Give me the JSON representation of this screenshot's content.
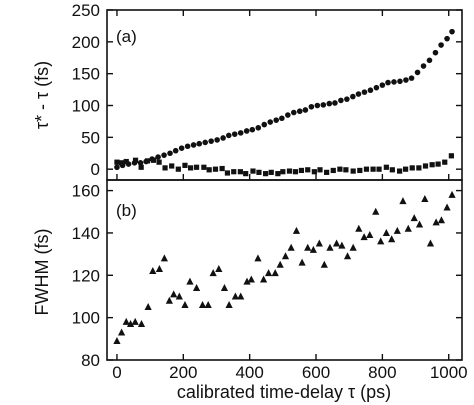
{
  "chart_data": [
    {
      "panel": "(a)",
      "type": "scatter",
      "ylabel": "τ* - τ (fs)",
      "yticks": [
        0,
        50,
        100,
        150,
        200,
        250
      ],
      "ylim": [
        -17,
        250
      ],
      "xlim": [
        -30,
        1040
      ],
      "grid": false,
      "series": [
        {
          "marker": "circle",
          "color": "#111111",
          "x": [
            0,
            17,
            35,
            53,
            71,
            88,
            106,
            124,
            142,
            160,
            177,
            195,
            213,
            231,
            248,
            266,
            284,
            302,
            320,
            337,
            355,
            373,
            391,
            408,
            426,
            444,
            462,
            480,
            497,
            515,
            533,
            551,
            568,
            586,
            604,
            622,
            640,
            657,
            675,
            693,
            711,
            728,
            746,
            764,
            782,
            800,
            817,
            835,
            853,
            871,
            888,
            906,
            924,
            942,
            960,
            977,
            995,
            1010
          ],
          "y": [
            3,
            6,
            8,
            10,
            10,
            12,
            16,
            19,
            22,
            25,
            29,
            33,
            36,
            38,
            40,
            42,
            44,
            46,
            49,
            53,
            55,
            57,
            60,
            62,
            65,
            70,
            74,
            77,
            80,
            85,
            89,
            91,
            93,
            98,
            100,
            101,
            103,
            104,
            108,
            110,
            114,
            118,
            121,
            124,
            128,
            132,
            136,
            137,
            138,
            140,
            143,
            152,
            162,
            171,
            183,
            195,
            205,
            216
          ]
        },
        {
          "marker": "square",
          "color": "#111111",
          "x": [
            0,
            14,
            28,
            56,
            73,
            92,
            110,
            127,
            145,
            165,
            185,
            205,
            222,
            240,
            262,
            278,
            297,
            317,
            333,
            352,
            372,
            388,
            410,
            428,
            448,
            465,
            485,
            500,
            520,
            538,
            556,
            575,
            595,
            612,
            632,
            652,
            672,
            690,
            712,
            732,
            752,
            772,
            790,
            812,
            830,
            852,
            870,
            890,
            910,
            930,
            950,
            968,
            988,
            1008
          ],
          "y": [
            11,
            10,
            12,
            14,
            3,
            13,
            14,
            11,
            2,
            5,
            0,
            6,
            2,
            3,
            3,
            -1,
            0,
            1,
            -6,
            -4,
            -4,
            -7,
            -3,
            -5,
            -7,
            -5,
            -7,
            -4,
            -3,
            -4,
            -2,
            -1,
            -4,
            -1,
            -5,
            -2,
            0,
            -1,
            -3,
            -2,
            0,
            0,
            0,
            3,
            -1,
            -3,
            0,
            2,
            2,
            5,
            7,
            8,
            11,
            21
          ]
        }
      ]
    },
    {
      "panel": "(b)",
      "type": "scatter",
      "ylabel": "FWHM (fs)",
      "xlabel": "calibrated time-delay τ (ps)",
      "xticks": [
        0,
        200,
        400,
        600,
        800,
        1000
      ],
      "yticks": [
        80,
        100,
        120,
        140,
        160
      ],
      "ylim": [
        80,
        165
      ],
      "xlim": [
        -30,
        1040
      ],
      "grid": false,
      "series": [
        {
          "marker": "triangle",
          "color": "#111111",
          "x": [
            0,
            14,
            28,
            41,
            55,
            74,
            94,
            108,
            128,
            143,
            158,
            171,
            188,
            205,
            220,
            240,
            258,
            275,
            290,
            307,
            324,
            338,
            357,
            373,
            392,
            405,
            425,
            442,
            457,
            477,
            492,
            508,
            525,
            541,
            558,
            575,
            592,
            610,
            625,
            642,
            662,
            678,
            695,
            712,
            729,
            745,
            762,
            780,
            795,
            812,
            828,
            845,
            862,
            878,
            896,
            912,
            928,
            945,
            962,
            978,
            995,
            1010
          ],
          "y": [
            89,
            93,
            98,
            97,
            98,
            97,
            105,
            122,
            123,
            128,
            108,
            111,
            110,
            106,
            117,
            114,
            106,
            106,
            121,
            123,
            114,
            106,
            110,
            110,
            117,
            118,
            128,
            118,
            121,
            121,
            125,
            129,
            133,
            141,
            126,
            133,
            132,
            135,
            125,
            133,
            135,
            134,
            129,
            133,
            142,
            138,
            139,
            150,
            136,
            140,
            137,
            141,
            155,
            142,
            147,
            144,
            156,
            135,
            145,
            146,
            152,
            158
          ]
        }
      ]
    }
  ]
}
